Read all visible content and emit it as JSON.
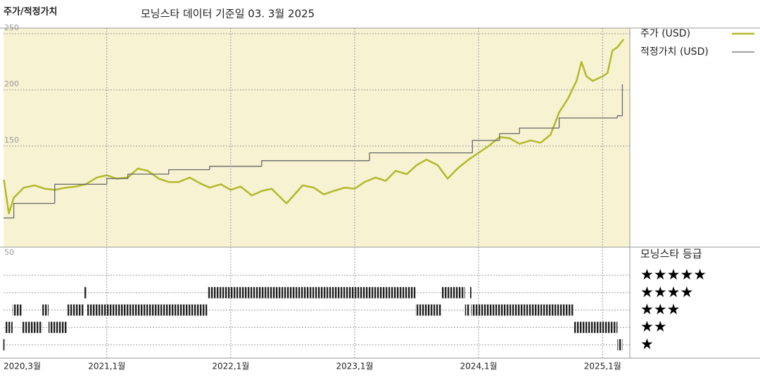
{
  "chart_data": [
    {
      "type": "line",
      "title": "주가/적정가치",
      "subtitle": "모닝스타 데이터 기준일 03. 3월 2025",
      "xlim": [
        2020.167,
        2025.22
      ],
      "ylim": [
        50,
        255
      ],
      "yticks": [
        50,
        150,
        200,
        250
      ],
      "grid": true,
      "series": [
        {
          "name": "주가 (USD)",
          "color": "#b3b82c",
          "style": "line",
          "x": [
            2020.17,
            2020.21,
            2020.25,
            2020.33,
            2020.42,
            2020.5,
            2020.58,
            2020.67,
            2020.75,
            2020.83,
            2020.92,
            2021.0,
            2021.08,
            2021.17,
            2021.25,
            2021.33,
            2021.42,
            2021.5,
            2021.58,
            2021.67,
            2021.75,
            2021.83,
            2021.92,
            2022.0,
            2022.08,
            2022.17,
            2022.25,
            2022.33,
            2022.45,
            2022.5,
            2022.58,
            2022.67,
            2022.75,
            2022.83,
            2022.92,
            2023.0,
            2023.08,
            2023.17,
            2023.25,
            2023.33,
            2023.42,
            2023.5,
            2023.58,
            2023.67,
            2023.75,
            2023.83,
            2023.92,
            2024.0,
            2024.08,
            2024.17,
            2024.25,
            2024.33,
            2024.42,
            2024.5,
            2024.58,
            2024.65,
            2024.72,
            2024.79,
            2024.83,
            2024.87,
            2024.92,
            2024.96,
            2025.0,
            2025.04,
            2025.08,
            2025.12,
            2025.17
          ],
          "values": [
            120,
            90,
            104,
            113,
            115,
            112,
            111,
            113,
            114,
            116,
            122,
            124,
            121,
            122,
            130,
            128,
            121,
            118,
            118,
            122,
            117,
            113,
            116,
            111,
            114,
            106,
            110,
            112,
            99,
            105,
            115,
            113,
            107,
            110,
            113,
            112,
            118,
            122,
            119,
            128,
            125,
            133,
            138,
            133,
            121,
            130,
            138,
            144,
            150,
            158,
            157,
            152,
            155,
            153,
            160,
            180,
            192,
            208,
            225,
            212,
            208,
            210,
            212,
            215,
            235,
            238,
            245
          ]
        },
        {
          "name": "적정가치 (USD)",
          "color": "#666666",
          "style": "step",
          "x": [
            2020.167,
            2020.25,
            2020.58,
            2021.0,
            2021.17,
            2021.5,
            2021.83,
            2022.25,
            2023.12,
            2023.95,
            2024.17,
            2024.33,
            2024.65,
            2025.12,
            2025.16
          ],
          "values": [
            86,
            99,
            116,
            121,
            125,
            129,
            132,
            137,
            144,
            155,
            161,
            166,
            175,
            177,
            205
          ]
        }
      ]
    },
    {
      "type": "gantt",
      "title": "모닝스타 등급",
      "xlim": [
        2020.167,
        2025.22
      ],
      "ylim": [
        0.23,
        6.62
      ],
      "xticks": [
        {
          "value": 2020.167,
          "label": "2020,3월"
        },
        {
          "value": 2021,
          "label": "2021,1월"
        },
        {
          "value": 2022,
          "label": "2022,1월"
        },
        {
          "value": 2023,
          "label": "2023,1월"
        },
        {
          "value": 2024,
          "label": "2024,1월"
        },
        {
          "value": 2025,
          "label": "2025,1월"
        }
      ],
      "yticks": [
        {
          "value": 5,
          "label": "★★★★★"
        },
        {
          "value": 4,
          "label": "★★★★"
        },
        {
          "value": 3,
          "label": "★★★"
        },
        {
          "value": 2,
          "label": "★★"
        },
        {
          "value": 1,
          "label": "★"
        }
      ],
      "periods": [
        {
          "start": 2020.165,
          "end": 2020.18,
          "rating": 1
        },
        {
          "start": 2020.18,
          "end": 2020.24,
          "rating": 2
        },
        {
          "start": 2020.24,
          "end": 2020.32,
          "rating": 3
        },
        {
          "start": 2020.32,
          "end": 2020.48,
          "rating": 2
        },
        {
          "start": 2020.48,
          "end": 2020.53,
          "rating": 3
        },
        {
          "start": 2020.53,
          "end": 2020.68,
          "rating": 2
        },
        {
          "start": 2020.68,
          "end": 2020.82,
          "rating": 3
        },
        {
          "start": 2020.82,
          "end": 2020.84,
          "rating": 4
        },
        {
          "start": 2020.84,
          "end": 2021.81,
          "rating": 3
        },
        {
          "start": 2021.81,
          "end": 2023.49,
          "rating": 4
        },
        {
          "start": 2023.49,
          "end": 2023.7,
          "rating": 3
        },
        {
          "start": 2023.7,
          "end": 2023.89,
          "rating": 4
        },
        {
          "start": 2023.89,
          "end": 2023.93,
          "rating": 3
        },
        {
          "start": 2023.93,
          "end": 2023.94,
          "rating": 4
        },
        {
          "start": 2023.94,
          "end": 2024.77,
          "rating": 3
        },
        {
          "start": 2024.77,
          "end": 2025.12,
          "rating": 2
        },
        {
          "start": 2025.12,
          "end": 2025.16,
          "rating": 1
        }
      ]
    }
  ]
}
